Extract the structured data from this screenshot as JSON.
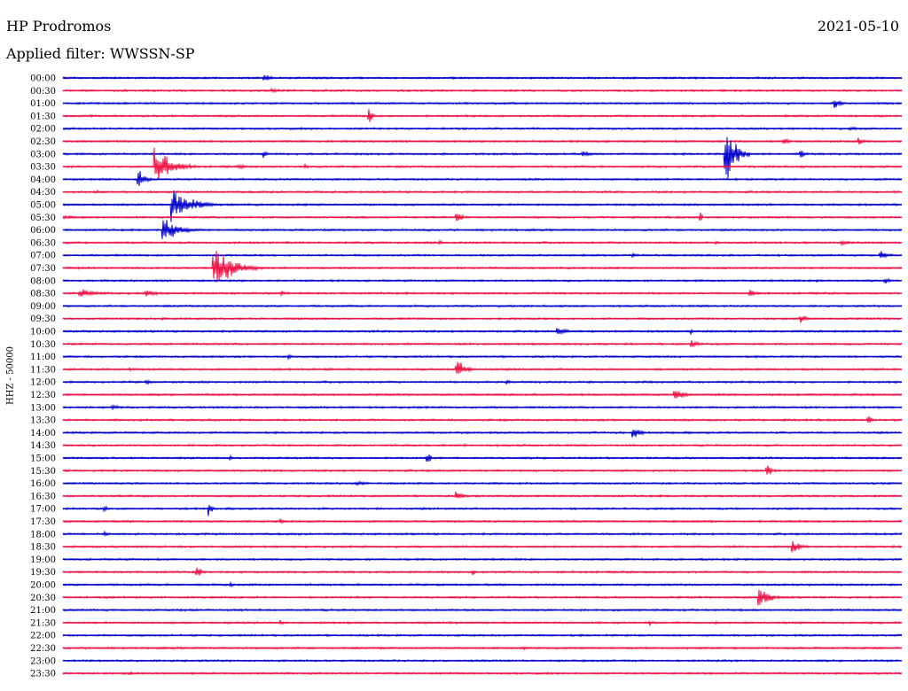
{
  "header": {
    "station": "HP Prodromos",
    "filter": "Applied filter: WWSSN-SP",
    "date": "2021-05-10"
  },
  "chart_data": {
    "type": "line",
    "ylabel": "HHZ - 50000",
    "colors": {
      "blue": "#0000cc",
      "red": "#ee1144"
    },
    "rows": [
      {
        "label": "00:00",
        "color": "blue",
        "events": [
          {
            "pos": 0.24,
            "amp": 6,
            "dur": 0.02
          }
        ]
      },
      {
        "label": "00:30",
        "color": "red",
        "events": [
          {
            "pos": 0.25,
            "amp": 3,
            "dur": 0.03
          },
          {
            "pos": 0.49,
            "amp": 2,
            "dur": 0.02
          }
        ]
      },
      {
        "label": "01:00",
        "color": "blue",
        "events": [
          {
            "pos": 0.92,
            "amp": 7,
            "dur": 0.02
          }
        ]
      },
      {
        "label": "01:30",
        "color": "red",
        "events": [
          {
            "pos": 0.365,
            "amp": 12,
            "dur": 0.01
          },
          {
            "pos": 0.59,
            "amp": 2,
            "dur": 0.02
          }
        ]
      },
      {
        "label": "02:00",
        "color": "blue",
        "events": [
          {
            "pos": 0.94,
            "amp": 3,
            "dur": 0.02
          }
        ]
      },
      {
        "label": "02:30",
        "color": "red",
        "events": [
          {
            "pos": 0.86,
            "amp": 4,
            "dur": 0.02
          },
          {
            "pos": 0.95,
            "amp": 5,
            "dur": 0.02
          }
        ]
      },
      {
        "label": "03:00",
        "color": "blue",
        "events": [
          {
            "pos": 0.79,
            "amp": 40,
            "dur": 0.03
          },
          {
            "pos": 0.62,
            "amp": 4,
            "dur": 0.03
          },
          {
            "pos": 0.88,
            "amp": 8,
            "dur": 0.01
          },
          {
            "pos": 0.24,
            "amp": 5,
            "dur": 0.01
          }
        ]
      },
      {
        "label": "03:30",
        "color": "red",
        "events": [
          {
            "pos": 0.11,
            "amp": 26,
            "dur": 0.05
          },
          {
            "pos": 0.21,
            "amp": 3,
            "dur": 0.03
          },
          {
            "pos": 0.29,
            "amp": 3,
            "dur": 0.01
          }
        ]
      },
      {
        "label": "04:00",
        "color": "blue",
        "events": [
          {
            "pos": 0.09,
            "amp": 14,
            "dur": 0.02
          },
          {
            "pos": 0.28,
            "amp": 2,
            "dur": 0.02
          }
        ]
      },
      {
        "label": "04:30",
        "color": "red",
        "events": [
          {
            "pos": 0.04,
            "amp": 2,
            "dur": 0.03
          }
        ]
      },
      {
        "label": "05:00",
        "color": "blue",
        "events": [
          {
            "pos": 0.13,
            "amp": 22,
            "dur": 0.06
          }
        ]
      },
      {
        "label": "05:30",
        "color": "red",
        "events": [
          {
            "pos": 0.47,
            "amp": 7,
            "dur": 0.02
          },
          {
            "pos": 0.76,
            "amp": 10,
            "dur": 0.005
          },
          {
            "pos": 0.0,
            "amp": 3,
            "dur": 0.06
          }
        ]
      },
      {
        "label": "06:00",
        "color": "blue",
        "events": [
          {
            "pos": 0.12,
            "amp": 16,
            "dur": 0.05
          }
        ]
      },
      {
        "label": "06:30",
        "color": "red",
        "events": [
          {
            "pos": 0.45,
            "amp": 3,
            "dur": 0.01
          },
          {
            "pos": 0.93,
            "amp": 4,
            "dur": 0.02
          },
          {
            "pos": 0.78,
            "amp": 2,
            "dur": 0.02
          }
        ]
      },
      {
        "label": "07:00",
        "color": "blue",
        "events": [
          {
            "pos": 0.975,
            "amp": 6,
            "dur": 0.025
          },
          {
            "pos": 0.68,
            "amp": 3,
            "dur": 0.02
          }
        ]
      },
      {
        "label": "07:30",
        "color": "red",
        "events": [
          {
            "pos": 0.18,
            "amp": 28,
            "dur": 0.06
          }
        ]
      },
      {
        "label": "08:00",
        "color": "blue",
        "events": [
          {
            "pos": 0.98,
            "amp": 4,
            "dur": 0.02
          },
          {
            "pos": 0.9,
            "amp": 2,
            "dur": 0.03
          }
        ]
      },
      {
        "label": "08:30",
        "color": "red",
        "events": [
          {
            "pos": 0.02,
            "amp": 6,
            "dur": 0.06
          },
          {
            "pos": 0.1,
            "amp": 5,
            "dur": 0.04
          },
          {
            "pos": 0.26,
            "amp": 4,
            "dur": 0.02
          },
          {
            "pos": 0.82,
            "amp": 5,
            "dur": 0.03
          }
        ]
      },
      {
        "label": "09:00",
        "color": "blue",
        "events": [
          {
            "pos": 0.52,
            "amp": 2,
            "dur": 0.02
          },
          {
            "pos": 0.79,
            "amp": 2,
            "dur": 0.02
          }
        ]
      },
      {
        "label": "09:30",
        "color": "red",
        "events": [
          {
            "pos": 0.88,
            "amp": 6,
            "dur": 0.02
          },
          {
            "pos": 0.12,
            "amp": 2,
            "dur": 0.01
          }
        ]
      },
      {
        "label": "10:00",
        "color": "blue",
        "events": [
          {
            "pos": 0.59,
            "amp": 6,
            "dur": 0.03
          },
          {
            "pos": 0.75,
            "amp": 3,
            "dur": 0.01
          }
        ]
      },
      {
        "label": "10:30",
        "color": "red",
        "events": [
          {
            "pos": 0.75,
            "amp": 5,
            "dur": 0.03
          },
          {
            "pos": 0.6,
            "amp": 2,
            "dur": 0.02
          }
        ]
      },
      {
        "label": "11:00",
        "color": "blue",
        "events": [
          {
            "pos": 0.27,
            "amp": 4,
            "dur": 0.01
          }
        ]
      },
      {
        "label": "11:30",
        "color": "red",
        "events": [
          {
            "pos": 0.47,
            "amp": 12,
            "dur": 0.03
          },
          {
            "pos": 0.08,
            "amp": 2,
            "dur": 0.02
          }
        ]
      },
      {
        "label": "12:00",
        "color": "blue",
        "events": [
          {
            "pos": 0.53,
            "amp": 5,
            "dur": 0.01
          },
          {
            "pos": 0.1,
            "amp": 3,
            "dur": 0.02
          }
        ]
      },
      {
        "label": "12:30",
        "color": "red",
        "events": [
          {
            "pos": 0.73,
            "amp": 8,
            "dur": 0.03
          },
          {
            "pos": 0.89,
            "amp": 2,
            "dur": 0.02
          }
        ]
      },
      {
        "label": "13:00",
        "color": "blue",
        "events": [
          {
            "pos": 0.06,
            "amp": 4,
            "dur": 0.02
          }
        ]
      },
      {
        "label": "13:30",
        "color": "red",
        "events": [
          {
            "pos": 0.96,
            "amp": 5,
            "dur": 0.02
          },
          {
            "pos": 0.11,
            "amp": 2,
            "dur": 0.01
          }
        ]
      },
      {
        "label": "14:00",
        "color": "blue",
        "events": [
          {
            "pos": 0.68,
            "amp": 10,
            "dur": 0.02
          }
        ]
      },
      {
        "label": "14:30",
        "color": "red",
        "events": [
          {
            "pos": 0.48,
            "amp": 2,
            "dur": 0.01
          }
        ]
      },
      {
        "label": "15:00",
        "color": "blue",
        "events": [
          {
            "pos": 0.435,
            "amp": 10,
            "dur": 0.008
          },
          {
            "pos": 0.2,
            "amp": 3,
            "dur": 0.01
          }
        ]
      },
      {
        "label": "15:30",
        "color": "red",
        "events": [
          {
            "pos": 0.84,
            "amp": 9,
            "dur": 0.015
          }
        ]
      },
      {
        "label": "16:00",
        "color": "blue",
        "events": [
          {
            "pos": 0.35,
            "amp": 3,
            "dur": 0.04
          }
        ]
      },
      {
        "label": "16:30",
        "color": "red",
        "events": [
          {
            "pos": 0.47,
            "amp": 6,
            "dur": 0.02
          }
        ]
      },
      {
        "label": "17:00",
        "color": "blue",
        "events": [
          {
            "pos": 0.175,
            "amp": 10,
            "dur": 0.008
          },
          {
            "pos": 0.05,
            "amp": 4,
            "dur": 0.015
          }
        ]
      },
      {
        "label": "17:30",
        "color": "red",
        "events": [
          {
            "pos": 0.26,
            "amp": 5,
            "dur": 0.01
          },
          {
            "pos": 0.77,
            "amp": 2,
            "dur": 0.03
          }
        ]
      },
      {
        "label": "18:00",
        "color": "blue",
        "events": [
          {
            "pos": 0.05,
            "amp": 3,
            "dur": 0.02
          },
          {
            "pos": 0.97,
            "amp": 2,
            "dur": 0.02
          }
        ]
      },
      {
        "label": "18:30",
        "color": "red",
        "events": [
          {
            "pos": 0.87,
            "amp": 9,
            "dur": 0.025
          }
        ]
      },
      {
        "label": "19:00",
        "color": "blue",
        "events": []
      },
      {
        "label": "19:30",
        "color": "red",
        "events": [
          {
            "pos": 0.16,
            "amp": 8,
            "dur": 0.015
          },
          {
            "pos": 0.49,
            "amp": 4,
            "dur": 0.01
          }
        ]
      },
      {
        "label": "20:00",
        "color": "blue",
        "events": [
          {
            "pos": 0.2,
            "amp": 3,
            "dur": 0.02
          }
        ]
      },
      {
        "label": "20:30",
        "color": "red",
        "events": [
          {
            "pos": 0.83,
            "amp": 16,
            "dur": 0.03
          }
        ]
      },
      {
        "label": "21:00",
        "color": "blue",
        "events": [
          {
            "pos": 0.47,
            "amp": 2,
            "dur": 0.01
          }
        ]
      },
      {
        "label": "21:30",
        "color": "red",
        "events": [
          {
            "pos": 0.7,
            "amp": 3,
            "dur": 0.02
          },
          {
            "pos": 0.26,
            "amp": 3,
            "dur": 0.01
          },
          {
            "pos": 0.78,
            "amp": 2,
            "dur": 0.02
          }
        ]
      },
      {
        "label": "22:00",
        "color": "blue",
        "events": []
      },
      {
        "label": "22:30",
        "color": "red",
        "events": [
          {
            "pos": 0.55,
            "amp": 2,
            "dur": 0.03
          },
          {
            "pos": 0.38,
            "amp": 2,
            "dur": 0.02
          }
        ]
      },
      {
        "label": "23:00",
        "color": "blue",
        "events": [
          {
            "pos": 0.2,
            "amp": 2,
            "dur": 0.01
          },
          {
            "pos": 0.68,
            "amp": 2,
            "dur": 0.01
          }
        ]
      },
      {
        "label": "23:30",
        "color": "red",
        "events": [
          {
            "pos": 0.08,
            "amp": 2,
            "dur": 0.03
          }
        ]
      }
    ]
  }
}
